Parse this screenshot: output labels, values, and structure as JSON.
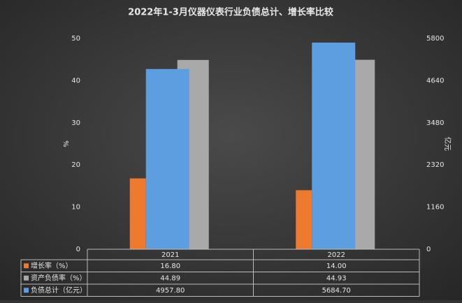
{
  "chart_data": {
    "type": "bar",
    "title": "2022年1-3月仪器仪表行业负债总计、增长率比较",
    "categories": [
      "2021",
      "2022"
    ],
    "series": [
      {
        "name": "增长率（%）",
        "color": "#ee7a2e",
        "values": [
          16.8,
          14
        ],
        "value_labels": [
          "16.80",
          "14.00"
        ]
      },
      {
        "name": "资产负债率（%）",
        "color": "#a9a9a9",
        "values": [
          44.89,
          44.93
        ],
        "value_labels": [
          "44.89",
          "44.93"
        ]
      },
      {
        "name": "负债总计（亿元）",
        "color": "#5c9ee0",
        "axis": "y2",
        "values": [
          4957.8,
          5684.7
        ],
        "value_labels": [
          "4957.80",
          "5684.70"
        ]
      }
    ],
    "ylabel": "%",
    "y2label": "亿元",
    "ylim": [
      0,
      50
    ],
    "yticks": [
      0,
      10,
      20,
      30,
      40,
      50
    ],
    "y2lim": [
      0,
      5800
    ],
    "y2ticks": [
      0,
      1160,
      2320,
      3480,
      4640,
      5800
    ],
    "grid": false
  }
}
